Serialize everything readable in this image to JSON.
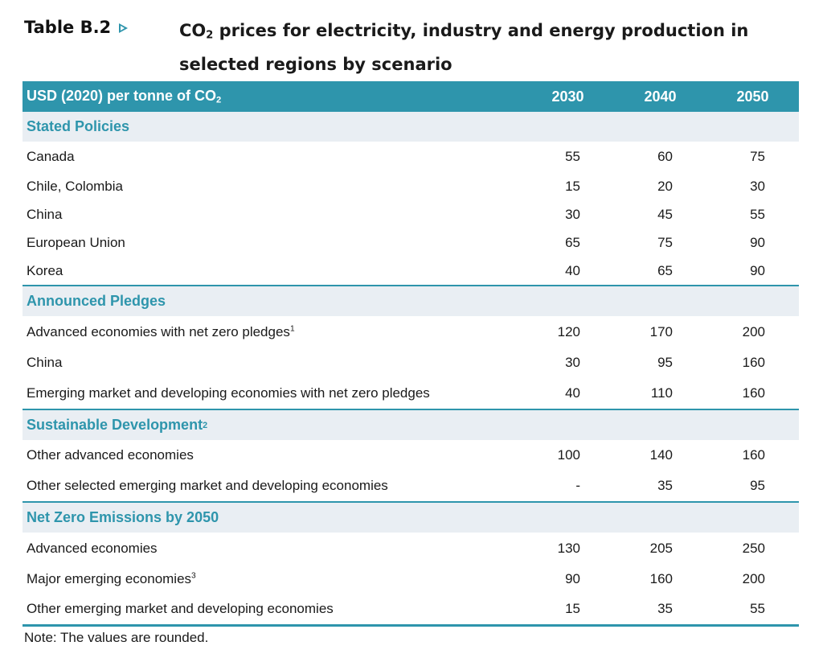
{
  "title": {
    "label": "Table B.2",
    "text_part1": "CO",
    "text_sub": "2",
    "text_part2": " prices for electricity, industry and energy production in selected regions by scenario"
  },
  "header": {
    "unit_part1": "USD (2020) per tonne of CO",
    "unit_sub": "2",
    "years": [
      "2030",
      "2040",
      "2050"
    ]
  },
  "sections": [
    {
      "name": "Stated Policies",
      "footnote": "",
      "rows": [
        {
          "label": "Canada",
          "footnote": "",
          "values": [
            "55",
            "60",
            "75"
          ]
        },
        {
          "label": "Chile, Colombia",
          "footnote": "",
          "values": [
            "15",
            "20",
            "30"
          ]
        },
        {
          "label": "China",
          "footnote": "",
          "values": [
            "30",
            "45",
            "55"
          ]
        },
        {
          "label": "European Union",
          "footnote": "",
          "values": [
            "65",
            "75",
            "90"
          ]
        },
        {
          "label": "Korea",
          "footnote": "",
          "values": [
            "40",
            "65",
            "90"
          ]
        }
      ]
    },
    {
      "name": "Announced Pledges",
      "footnote": "",
      "rows": [
        {
          "label": "Advanced economies with net zero pledges",
          "footnote": "1",
          "values": [
            "120",
            "170",
            "200"
          ]
        },
        {
          "label": "China",
          "footnote": "",
          "values": [
            "30",
            "95",
            "160"
          ]
        },
        {
          "label": "Emerging market and developing economies with net zero pledges",
          "footnote": "",
          "values": [
            "40",
            "110",
            "160"
          ]
        }
      ]
    },
    {
      "name": "Sustainable Development",
      "footnote": "2",
      "rows": [
        {
          "label": "Other advanced economies",
          "footnote": "",
          "values": [
            "100",
            "140",
            "160"
          ]
        },
        {
          "label": "Other selected emerging market and developing economies",
          "footnote": "",
          "values": [
            "-",
            "35",
            "95"
          ]
        }
      ]
    },
    {
      "name": "Net Zero Emissions by 2050",
      "footnote": "",
      "rows": [
        {
          "label": "Advanced economies",
          "footnote": "",
          "values": [
            "130",
            "205",
            "250"
          ]
        },
        {
          "label": "Major emerging economies",
          "footnote": "3",
          "values": [
            "90",
            "160",
            "200"
          ]
        },
        {
          "label": "Other emerging market and developing economies",
          "footnote": "",
          "values": [
            "15",
            "35",
            "55"
          ]
        }
      ]
    }
  ],
  "note": "Note:  The values are rounded.",
  "colors": {
    "accent": "#2e95ac",
    "section_bg": "#e9eef3"
  }
}
